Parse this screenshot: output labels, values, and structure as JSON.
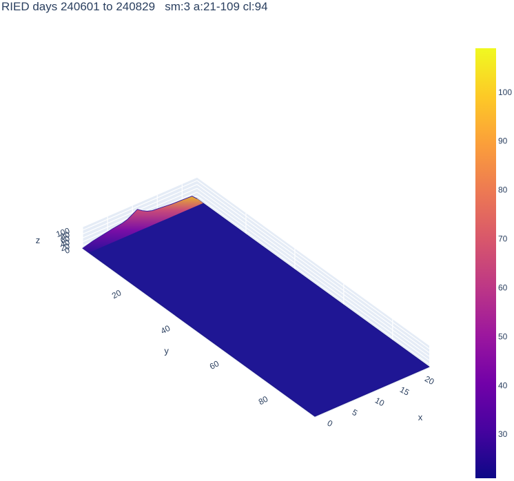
{
  "chart_data": {
    "type": "surface",
    "title": "RIED days 240601 to 240829   sm:3 a:21-109 cl:94",
    "xlabel": "x",
    "ylabel": "y",
    "zlabel": "z",
    "xlim": [
      0,
      23
    ],
    "ylim": [
      0,
      95
    ],
    "zlim": [
      0,
      109
    ],
    "x_ticks": [
      "0",
      "5",
      "10",
      "15",
      "20"
    ],
    "y_ticks": [
      "20",
      "40",
      "60",
      "80"
    ],
    "z_ticks": [
      "0",
      "20",
      "40",
      "60",
      "80",
      "100"
    ],
    "colorscale": "plasma",
    "colorbar_range": [
      21,
      109
    ],
    "colorbar_ticks": [
      "30",
      "40",
      "50",
      "60",
      "70",
      "80",
      "90",
      "100"
    ],
    "baseline_z": 21,
    "edge_profile_y0": {
      "x": [
        0,
        2,
        4,
        6,
        8,
        9,
        10,
        11,
        12,
        13,
        14,
        16,
        18,
        20,
        22,
        23
      ],
      "z": [
        21,
        35,
        45,
        55,
        62,
        70,
        85,
        100,
        82,
        68,
        60,
        55,
        50,
        48,
        45,
        21
      ]
    }
  }
}
